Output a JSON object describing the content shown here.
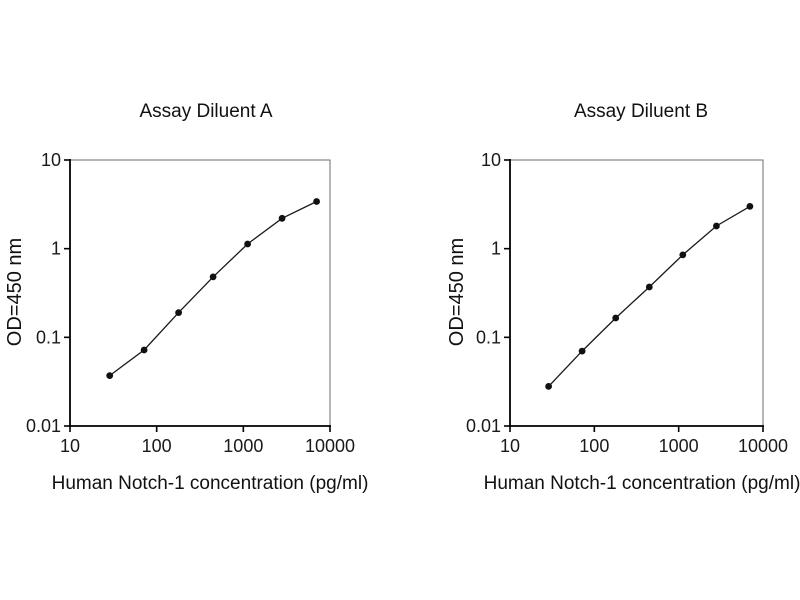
{
  "page": {
    "background": "#ffffff"
  },
  "style": {
    "axis_color": "#000000",
    "frame_color": "#6e6e6e",
    "line_color": "#1a1a1a",
    "marker_color": "#111111",
    "tick_text_color": "#1a1a1a"
  },
  "chart_data": [
    {
      "type": "line",
      "title": "Assay Diluent A",
      "xlabel": "Human Notch-1 concentration (pg/ml)",
      "ylabel": "OD=450 nm",
      "x_scale": "log",
      "y_scale": "log",
      "xlim": [
        10,
        10000
      ],
      "ylim": [
        0.01,
        10
      ],
      "xticks": [
        10,
        100,
        1000,
        10000
      ],
      "yticks": [
        10,
        1,
        0.1,
        0.01
      ],
      "grid": false,
      "legend": "none",
      "marker": "filled-circle",
      "x": [
        28.7,
        71.7,
        179,
        448,
        1120,
        2800,
        7000
      ],
      "y": [
        0.037,
        0.072,
        0.19,
        0.48,
        1.13,
        2.2,
        3.4
      ]
    },
    {
      "type": "line",
      "title": "Assay Diluent B",
      "xlabel": "Human Notch-1 concentration (pg/ml)",
      "ylabel": "OD=450 nm",
      "x_scale": "log",
      "y_scale": "log",
      "xlim": [
        10,
        10000
      ],
      "ylim": [
        0.01,
        10
      ],
      "xticks": [
        10,
        100,
        1000,
        10000
      ],
      "yticks": [
        10,
        1,
        0.1,
        0.01
      ],
      "grid": false,
      "legend": "none",
      "marker": "filled-circle",
      "x": [
        28.7,
        71.7,
        179,
        448,
        1120,
        2800,
        7000
      ],
      "y": [
        0.028,
        0.07,
        0.165,
        0.37,
        0.85,
        1.8,
        3.0
      ]
    }
  ]
}
